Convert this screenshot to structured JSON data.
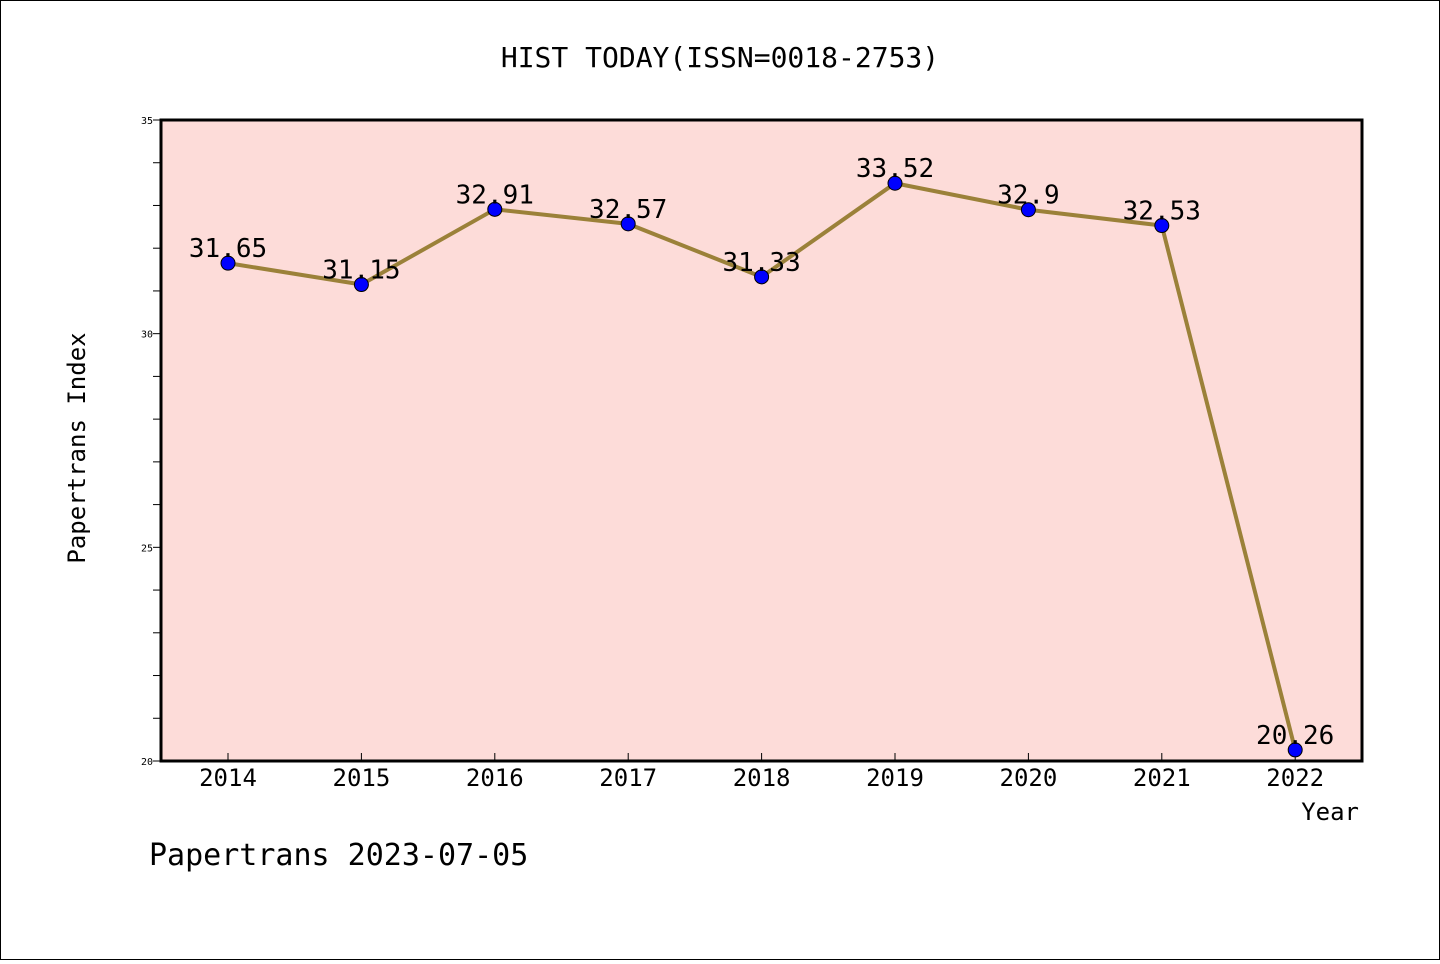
{
  "chart_data": {
    "type": "line",
    "title": "HIST TODAY(ISSN=0018-2753)",
    "xlabel": "Year",
    "ylabel": "Papertrans Index",
    "categories": [
      "2014",
      "2015",
      "2016",
      "2017",
      "2018",
      "2019",
      "2020",
      "2021",
      "2022"
    ],
    "series": [
      {
        "values": [
          31.65,
          31.15,
          32.91,
          32.57,
          31.33,
          33.52,
          32.9,
          32.53,
          20.26
        ],
        "labels": [
          "31.65",
          "31.15",
          "32.91",
          "32.57",
          "31.33",
          "33.52",
          "32.9",
          "32.53",
          "20.26"
        ]
      }
    ],
    "ylim": [
      20,
      35
    ],
    "y_ticks": [
      "20",
      "25",
      "30",
      "35"
    ],
    "y_minor_step": 1,
    "grid": false,
    "colors": {
      "plot_background": "#fddcd9",
      "line": "#9b8139",
      "marker": "#0000ff",
      "marker_edge": "#000000"
    }
  },
  "footer": {
    "text": "Papertrans 2023-07-05"
  }
}
